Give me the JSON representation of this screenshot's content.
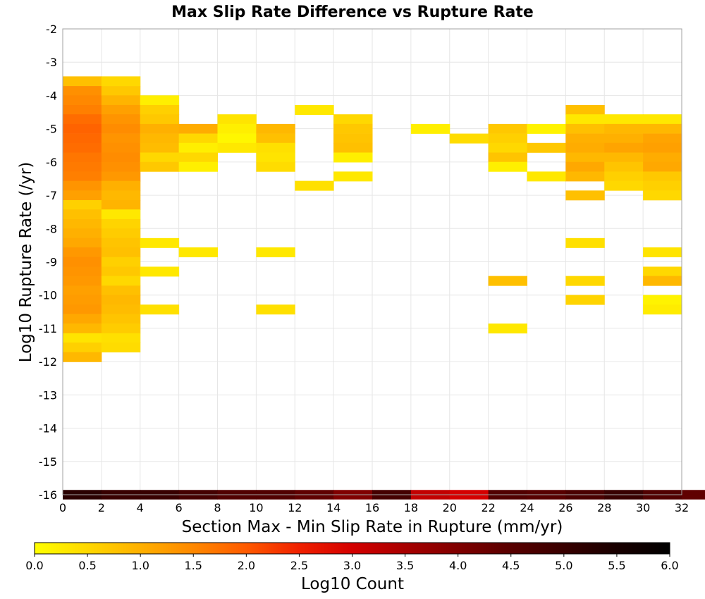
{
  "chart_data": {
    "type": "heatmap",
    "title": "Max Slip Rate Difference vs Rupture Rate",
    "xlabel": "Section Max - Min Slip Rate in Rupture (mm/yr)",
    "ylabel": "Log10 Rupture Rate (/yr)",
    "xlim": [
      0,
      32
    ],
    "ylim": [
      -16,
      -2
    ],
    "x_ticks": [
      0,
      2,
      4,
      6,
      8,
      10,
      12,
      14,
      16,
      18,
      20,
      22,
      24,
      26,
      28,
      30,
      32
    ],
    "y_ticks": [
      -2,
      -3,
      -4,
      -5,
      -6,
      -7,
      -8,
      -9,
      -10,
      -11,
      -12,
      -13,
      -14,
      -15,
      -16
    ],
    "x_bin_width": 2,
    "y_bin_height": 0.286,
    "grid": true,
    "colorbar": {
      "label": "Log10 Count",
      "min": 0,
      "max": 6,
      "ticks": [
        "0.0",
        "0.5",
        "1.0",
        "1.5",
        "2.0",
        "2.5",
        "3.0",
        "3.5",
        "4.0",
        "4.5",
        "5.0",
        "5.5",
        "6.0"
      ],
      "colors": [
        "#ffff00",
        "#ffd800",
        "#ffb000",
        "#ff8800",
        "#ff5a00",
        "#f02000",
        "#d40000",
        "#a80000",
        "#800000",
        "#580000",
        "#380000",
        "#180000",
        "#000000"
      ],
      "position": "bottom"
    },
    "bottom_strip": {
      "y": -16,
      "values": [
        5.2,
        5.0,
        5.0,
        4.8,
        4.6,
        4.6,
        4.4,
        4.0,
        4.8,
        3.2,
        3.0,
        4.6,
        4.5,
        4.7,
        5.0,
        4.6,
        4.4
      ]
    },
    "cells": [
      {
        "x": 0,
        "y": -3.57,
        "v": 0.8
      },
      {
        "x": 0,
        "y": -3.86,
        "v": 1.4
      },
      {
        "x": 0,
        "y": -4.14,
        "v": 1.5
      },
      {
        "x": 0,
        "y": -4.43,
        "v": 1.6
      },
      {
        "x": 0,
        "y": -4.71,
        "v": 1.8
      },
      {
        "x": 0,
        "y": -5.0,
        "v": 1.9
      },
      {
        "x": 0,
        "y": -5.29,
        "v": 1.85
      },
      {
        "x": 0,
        "y": -5.57,
        "v": 1.8
      },
      {
        "x": 0,
        "y": -5.86,
        "v": 1.7
      },
      {
        "x": 0,
        "y": -6.14,
        "v": 1.65
      },
      {
        "x": 0,
        "y": -6.43,
        "v": 1.6
      },
      {
        "x": 0,
        "y": -6.71,
        "v": 1.35
      },
      {
        "x": 0,
        "y": -7.0,
        "v": 1.2
      },
      {
        "x": 0,
        "y": -7.29,
        "v": 0.6
      },
      {
        "x": 0,
        "y": -7.57,
        "v": 0.8
      },
      {
        "x": 0,
        "y": -7.86,
        "v": 0.9
      },
      {
        "x": 0,
        "y": -8.14,
        "v": 1.0
      },
      {
        "x": 0,
        "y": -8.43,
        "v": 1.1
      },
      {
        "x": 0,
        "y": -8.71,
        "v": 1.3
      },
      {
        "x": 0,
        "y": -9.0,
        "v": 1.4
      },
      {
        "x": 0,
        "y": -9.29,
        "v": 1.35
      },
      {
        "x": 0,
        "y": -9.57,
        "v": 1.3
      },
      {
        "x": 0,
        "y": -9.86,
        "v": 1.2
      },
      {
        "x": 0,
        "y": -10.14,
        "v": 1.25
      },
      {
        "x": 0,
        "y": -10.43,
        "v": 1.3
      },
      {
        "x": 0,
        "y": -10.71,
        "v": 1.1
      },
      {
        "x": 0,
        "y": -11.0,
        "v": 0.9
      },
      {
        "x": 0,
        "y": -11.29,
        "v": 0.35
      },
      {
        "x": 0,
        "y": -11.57,
        "v": 0.6
      },
      {
        "x": 0,
        "y": -11.86,
        "v": 0.9
      },
      {
        "x": 2,
        "y": -3.57,
        "v": 0.5
      },
      {
        "x": 2,
        "y": -3.86,
        "v": 0.7
      },
      {
        "x": 2,
        "y": -4.14,
        "v": 0.95
      },
      {
        "x": 2,
        "y": -4.43,
        "v": 1.2
      },
      {
        "x": 2,
        "y": -4.71,
        "v": 1.35
      },
      {
        "x": 2,
        "y": -5.0,
        "v": 1.45
      },
      {
        "x": 2,
        "y": -5.29,
        "v": 1.35
      },
      {
        "x": 2,
        "y": -5.57,
        "v": 1.4
      },
      {
        "x": 2,
        "y": -5.86,
        "v": 1.45
      },
      {
        "x": 2,
        "y": -6.14,
        "v": 1.4
      },
      {
        "x": 2,
        "y": -6.43,
        "v": 1.3
      },
      {
        "x": 2,
        "y": -6.71,
        "v": 1.0
      },
      {
        "x": 2,
        "y": -7.0,
        "v": 0.9
      },
      {
        "x": 2,
        "y": -7.29,
        "v": 0.95
      },
      {
        "x": 2,
        "y": -7.57,
        "v": 0.3
      },
      {
        "x": 2,
        "y": -7.86,
        "v": 0.55
      },
      {
        "x": 2,
        "y": -8.14,
        "v": 0.65
      },
      {
        "x": 2,
        "y": -8.43,
        "v": 0.75
      },
      {
        "x": 2,
        "y": -8.71,
        "v": 0.8
      },
      {
        "x": 2,
        "y": -9.0,
        "v": 0.6
      },
      {
        "x": 2,
        "y": -9.29,
        "v": 0.7
      },
      {
        "x": 2,
        "y": -9.57,
        "v": 0.5
      },
      {
        "x": 2,
        "y": -9.86,
        "v": 0.8
      },
      {
        "x": 2,
        "y": -10.14,
        "v": 0.9
      },
      {
        "x": 2,
        "y": -10.43,
        "v": 0.85
      },
      {
        "x": 2,
        "y": -10.71,
        "v": 0.75
      },
      {
        "x": 2,
        "y": -11.0,
        "v": 0.65
      },
      {
        "x": 2,
        "y": -11.29,
        "v": 0.4
      },
      {
        "x": 2,
        "y": -11.57,
        "v": 0.45
      },
      {
        "x": 4,
        "y": -4.14,
        "v": 0.2
      },
      {
        "x": 4,
        "y": -4.43,
        "v": 0.6
      },
      {
        "x": 4,
        "y": -4.71,
        "v": 0.7
      },
      {
        "x": 4,
        "y": -5.0,
        "v": 1.0
      },
      {
        "x": 4,
        "y": -5.29,
        "v": 0.9
      },
      {
        "x": 4,
        "y": -5.57,
        "v": 0.85
      },
      {
        "x": 4,
        "y": -5.86,
        "v": 0.5
      },
      {
        "x": 4,
        "y": -6.14,
        "v": 0.7
      },
      {
        "x": 4,
        "y": -8.43,
        "v": 0.3
      },
      {
        "x": 4,
        "y": -9.29,
        "v": 0.3
      },
      {
        "x": 4,
        "y": -10.43,
        "v": 0.4
      },
      {
        "x": 6,
        "y": -5.0,
        "v": 1.05
      },
      {
        "x": 6,
        "y": -5.29,
        "v": 0.5
      },
      {
        "x": 6,
        "y": -5.57,
        "v": 0.2
      },
      {
        "x": 6,
        "y": -5.86,
        "v": 0.5
      },
      {
        "x": 6,
        "y": -6.14,
        "v": 0.2
      },
      {
        "x": 6,
        "y": -8.71,
        "v": 0.3
      },
      {
        "x": 8,
        "y": -4.71,
        "v": 0.35
      },
      {
        "x": 8,
        "y": -5.0,
        "v": 0.2
      },
      {
        "x": 8,
        "y": -5.29,
        "v": 0.1
      },
      {
        "x": 8,
        "y": -5.57,
        "v": 0.3
      },
      {
        "x": 10,
        "y": -5.0,
        "v": 0.9
      },
      {
        "x": 10,
        "y": -5.29,
        "v": 0.8
      },
      {
        "x": 10,
        "y": -5.57,
        "v": 0.4
      },
      {
        "x": 10,
        "y": -5.86,
        "v": 0.35
      },
      {
        "x": 10,
        "y": -6.14,
        "v": 0.45
      },
      {
        "x": 10,
        "y": -8.71,
        "v": 0.3
      },
      {
        "x": 10,
        "y": -10.43,
        "v": 0.4
      },
      {
        "x": 12,
        "y": -4.43,
        "v": 0.3
      },
      {
        "x": 12,
        "y": -6.71,
        "v": 0.4
      },
      {
        "x": 14,
        "y": -4.71,
        "v": 0.5
      },
      {
        "x": 14,
        "y": -5.0,
        "v": 0.7
      },
      {
        "x": 14,
        "y": -5.29,
        "v": 0.75
      },
      {
        "x": 14,
        "y": -5.57,
        "v": 0.8
      },
      {
        "x": 14,
        "y": -5.86,
        "v": 0.2
      },
      {
        "x": 14,
        "y": -6.43,
        "v": 0.3
      },
      {
        "x": 18,
        "y": -5.0,
        "v": 0.2
      },
      {
        "x": 20,
        "y": -5.29,
        "v": 0.45
      },
      {
        "x": 22,
        "y": -5.0,
        "v": 0.7
      },
      {
        "x": 22,
        "y": -5.29,
        "v": 0.6
      },
      {
        "x": 22,
        "y": -5.57,
        "v": 0.5
      },
      {
        "x": 22,
        "y": -5.86,
        "v": 0.75
      },
      {
        "x": 22,
        "y": -6.14,
        "v": 0.2
      },
      {
        "x": 22,
        "y": -9.57,
        "v": 0.8
      },
      {
        "x": 22,
        "y": -11.0,
        "v": 0.3
      },
      {
        "x": 24,
        "y": -5.0,
        "v": 0.15
      },
      {
        "x": 24,
        "y": -5.57,
        "v": 0.7
      },
      {
        "x": 24,
        "y": -6.43,
        "v": 0.3
      },
      {
        "x": 26,
        "y": -4.43,
        "v": 0.8
      },
      {
        "x": 26,
        "y": -4.71,
        "v": 0.3
      },
      {
        "x": 26,
        "y": -5.0,
        "v": 0.8
      },
      {
        "x": 26,
        "y": -5.29,
        "v": 1.0
      },
      {
        "x": 26,
        "y": -5.57,
        "v": 1.05
      },
      {
        "x": 26,
        "y": -5.86,
        "v": 0.9
      },
      {
        "x": 26,
        "y": -6.14,
        "v": 1.1
      },
      {
        "x": 26,
        "y": -6.43,
        "v": 0.9
      },
      {
        "x": 26,
        "y": -7.0,
        "v": 0.8
      },
      {
        "x": 26,
        "y": -8.43,
        "v": 0.4
      },
      {
        "x": 26,
        "y": -9.57,
        "v": 0.5
      },
      {
        "x": 26,
        "y": -10.14,
        "v": 0.55
      },
      {
        "x": 28,
        "y": -4.71,
        "v": 0.3
      },
      {
        "x": 28,
        "y": -5.0,
        "v": 0.9
      },
      {
        "x": 28,
        "y": -5.29,
        "v": 1.0
      },
      {
        "x": 28,
        "y": -5.57,
        "v": 1.15
      },
      {
        "x": 28,
        "y": -5.86,
        "v": 0.9
      },
      {
        "x": 28,
        "y": -6.14,
        "v": 0.75
      },
      {
        "x": 28,
        "y": -6.43,
        "v": 0.6
      },
      {
        "x": 28,
        "y": -6.71,
        "v": 0.5
      },
      {
        "x": 30,
        "y": -4.71,
        "v": 0.3
      },
      {
        "x": 30,
        "y": -5.0,
        "v": 0.9
      },
      {
        "x": 30,
        "y": -5.29,
        "v": 1.15
      },
      {
        "x": 30,
        "y": -5.57,
        "v": 1.2
      },
      {
        "x": 30,
        "y": -5.86,
        "v": 1.05
      },
      {
        "x": 30,
        "y": -6.14,
        "v": 1.1
      },
      {
        "x": 30,
        "y": -6.43,
        "v": 0.7
      },
      {
        "x": 30,
        "y": -6.71,
        "v": 0.6
      },
      {
        "x": 30,
        "y": -7.0,
        "v": 0.5
      },
      {
        "x": 30,
        "y": -8.71,
        "v": 0.35
      },
      {
        "x": 30,
        "y": -9.29,
        "v": 0.5
      },
      {
        "x": 30,
        "y": -9.57,
        "v": 0.9
      },
      {
        "x": 30,
        "y": -10.14,
        "v": 0.15
      },
      {
        "x": 30,
        "y": -10.43,
        "v": 0.25
      }
    ]
  }
}
